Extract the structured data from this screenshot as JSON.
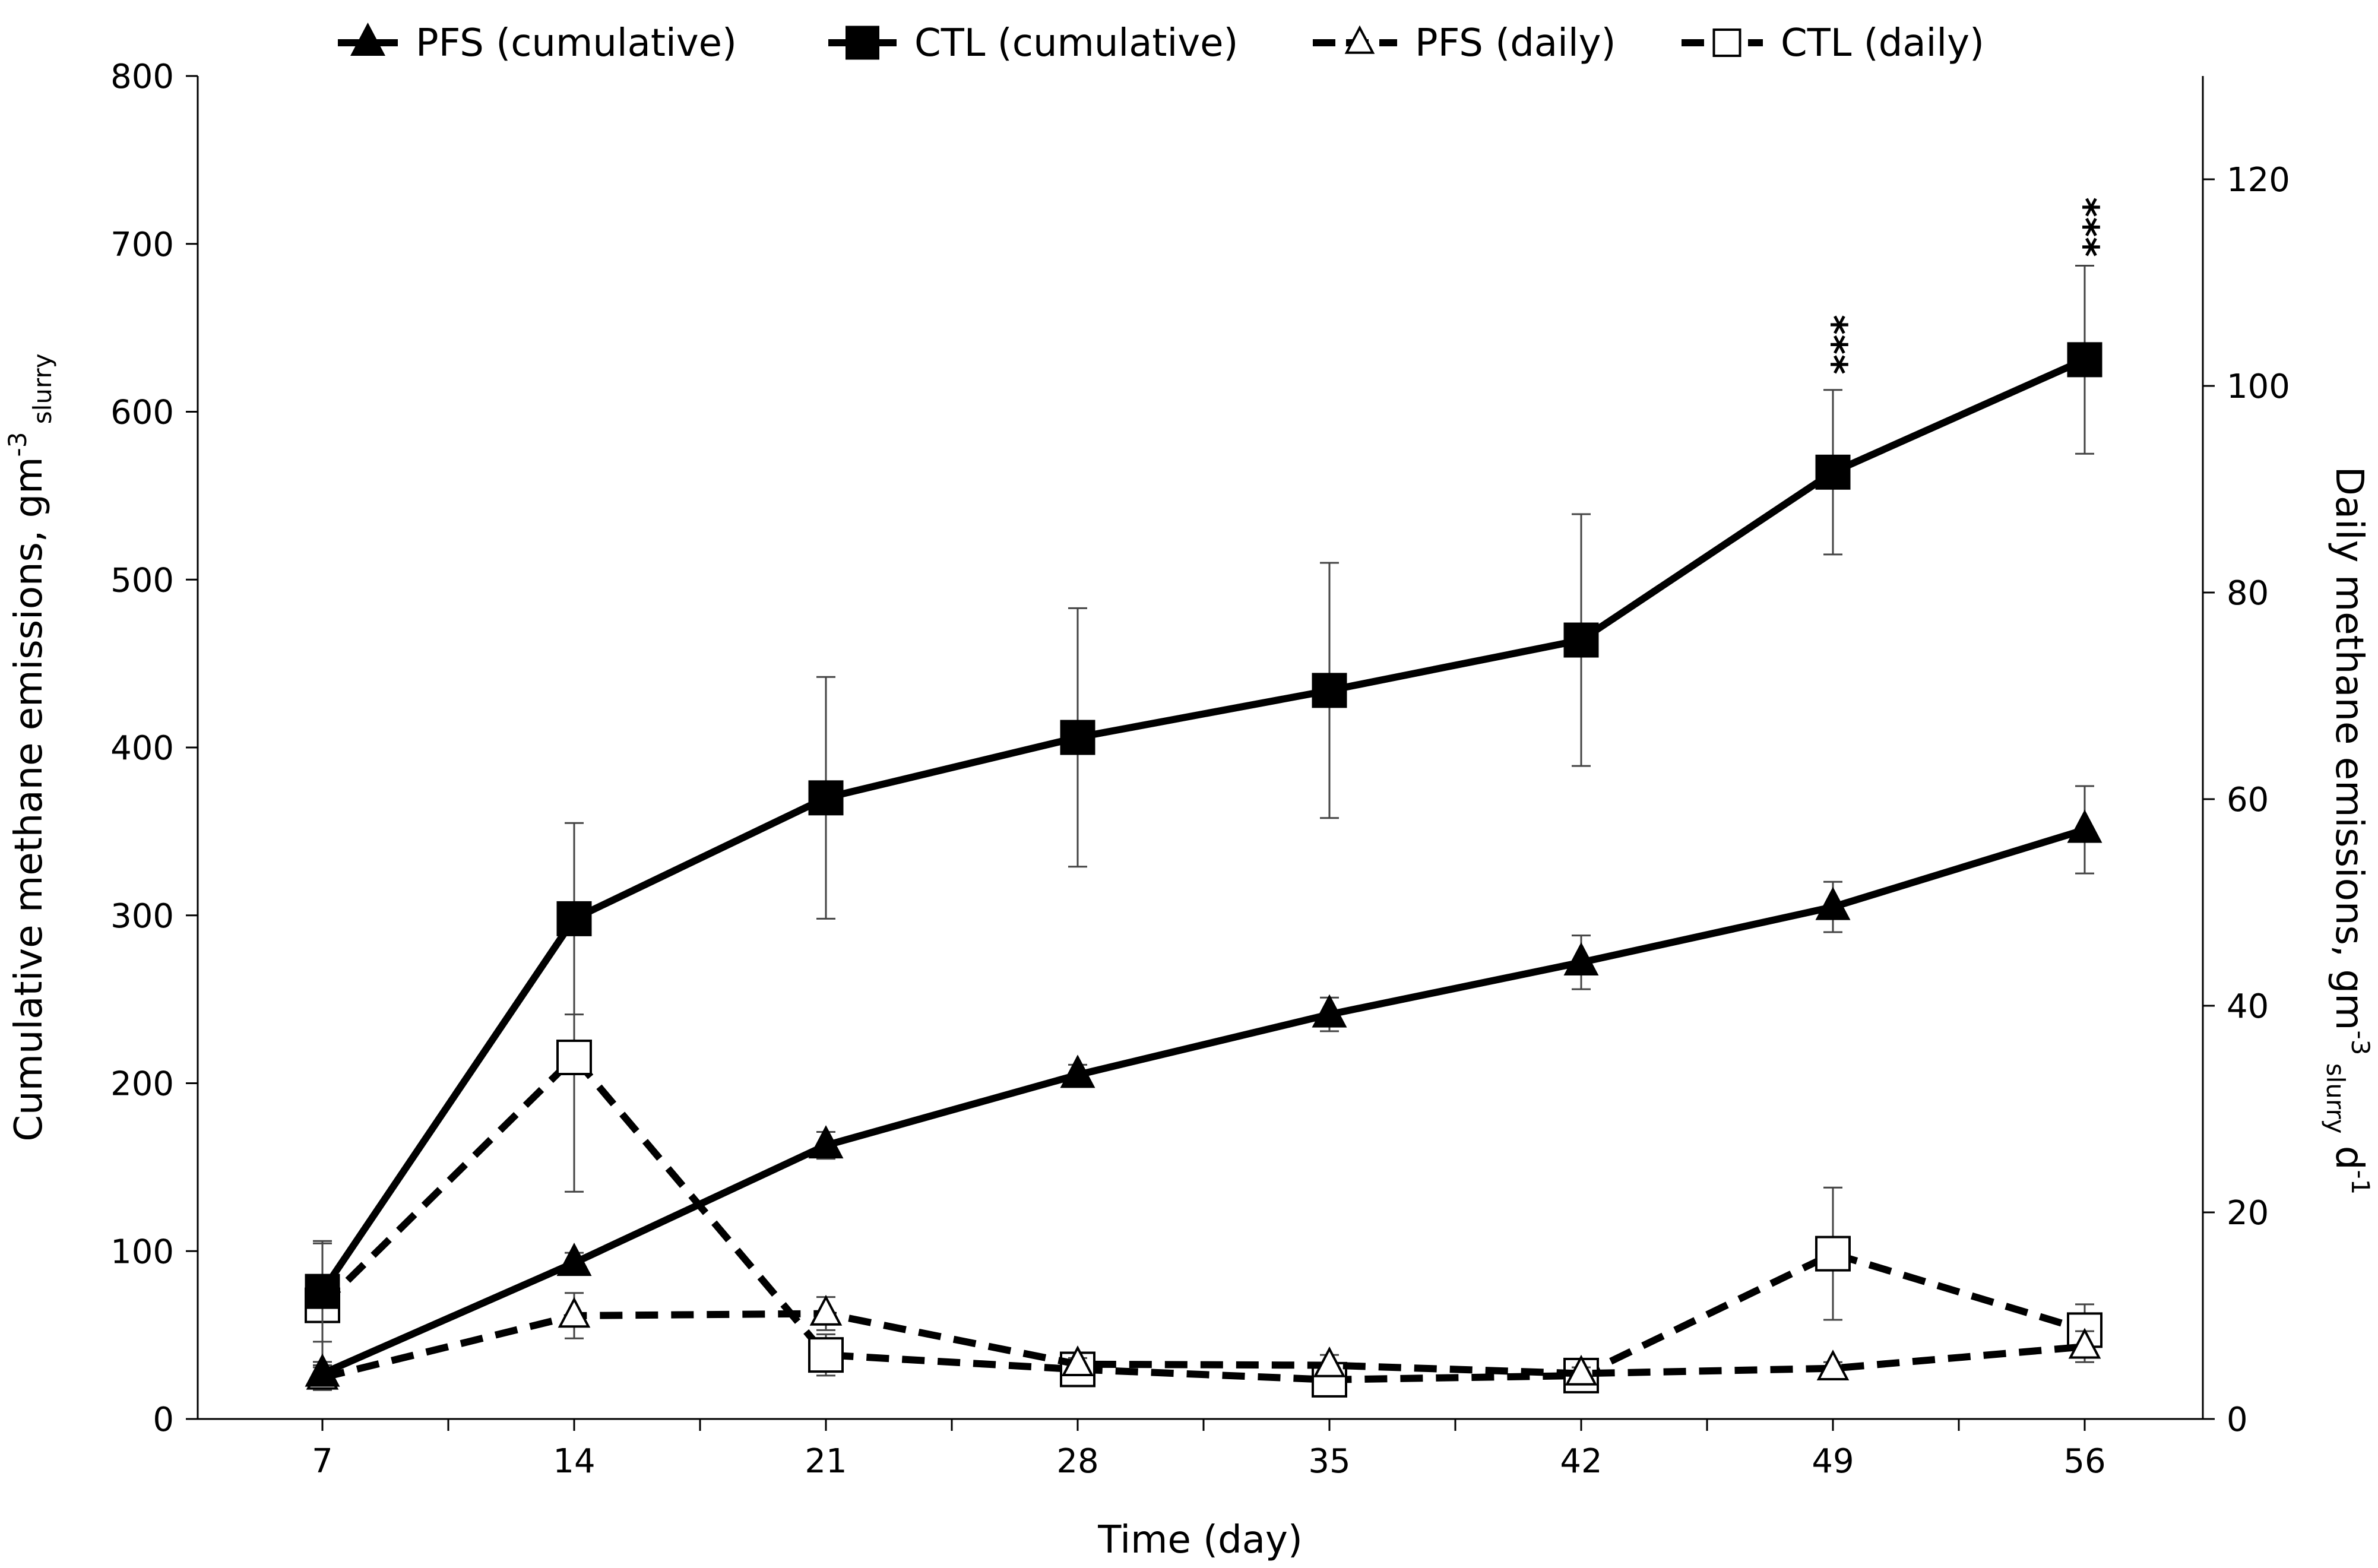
{
  "chart_data": {
    "type": "line",
    "x": [
      7,
      14,
      21,
      28,
      35,
      42,
      49,
      56
    ],
    "xlabel": "Time (day)",
    "xticks": [
      "7",
      "14",
      "21",
      "28",
      "35",
      "42",
      "49",
      "56"
    ],
    "ylabel_left": {
      "main": "Cumulative methane emissions, gm",
      "sup": "-3",
      "sub": "slurry"
    },
    "ylabel_right": {
      "main": "Daily methane emissions, gm",
      "sup": "-3",
      "sub": "slurry",
      "tail": "d",
      "tail_sup": "-1"
    },
    "ylim_left": [
      0,
      800
    ],
    "yticks_left": [
      0,
      100,
      200,
      300,
      400,
      500,
      600,
      700,
      800
    ],
    "ylim_right": [
      0,
      130
    ],
    "yticks_right": [
      0,
      20,
      40,
      60,
      80,
      100,
      120
    ],
    "grid": false,
    "legend_position": "top",
    "series": [
      {
        "name": "PFS (cumulative)",
        "axis": "left",
        "marker": "triangle",
        "filled": true,
        "dashed": false,
        "values": [
          27,
          93,
          163,
          205,
          241,
          272,
          305,
          351
        ],
        "errors": [
          7,
          6,
          8,
          6,
          10,
          16,
          15,
          26
        ]
      },
      {
        "name": "CTL (cumulative)",
        "axis": "left",
        "marker": "square",
        "filled": true,
        "dashed": false,
        "values": [
          76,
          298,
          370,
          406,
          434,
          464,
          564,
          631
        ],
        "errors": [
          30,
          57,
          72,
          77,
          76,
          75,
          49,
          56
        ]
      },
      {
        "name": "PFS (daily)",
        "axis": "right",
        "marker": "triangle",
        "filled": false,
        "dashed": true,
        "values": [
          4.0,
          10.0,
          10.2,
          5.3,
          5.2,
          4.4,
          4.9,
          7.0
        ],
        "errors": [
          1.2,
          2.2,
          1.6,
          0.6,
          1.0,
          0.6,
          0.6,
          1.5
        ]
      },
      {
        "name": "CTL (daily)",
        "axis": "right",
        "marker": "square",
        "filled": false,
        "dashed": true,
        "values": [
          11.0,
          35.0,
          6.2,
          4.8,
          3.8,
          4.2,
          16.0,
          8.6
        ],
        "errors": [
          6.0,
          13.0,
          2.0,
          0.5,
          0.5,
          0.5,
          6.4,
          2.5
        ]
      }
    ],
    "annotations": [
      {
        "text": "***",
        "x": 49,
        "y_left": 640
      },
      {
        "text": "***",
        "x": 56,
        "y_left": 710
      }
    ]
  }
}
